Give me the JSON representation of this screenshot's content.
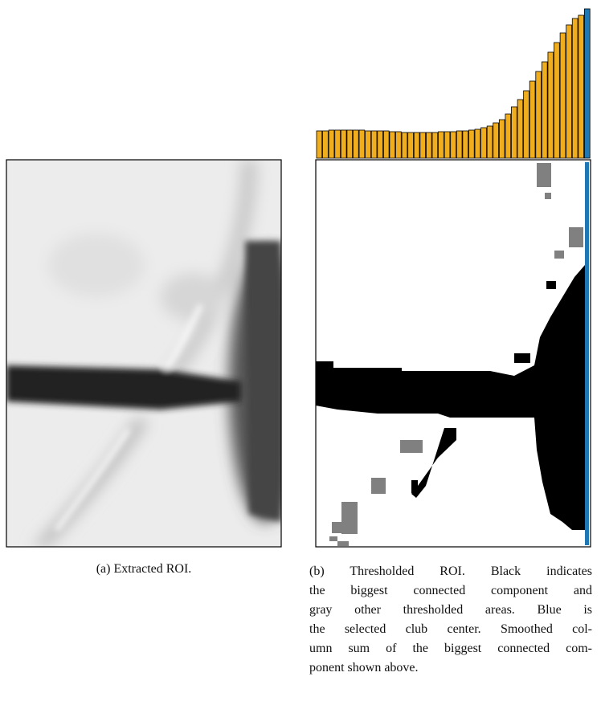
{
  "figure": {
    "subfigure_a": {
      "caption": "(a) Extracted ROI."
    },
    "subfigure_b": {
      "caption_lines": [
        "(b) Thresholded ROI. Black indicates",
        "the biggest connected component and",
        "gray other thresholded areas. Blue is",
        "the selected club center. Smoothed col-",
        "umn sum of the biggest connected com-",
        "ponent shown above."
      ]
    },
    "column_sum": {
      "values": [
        34,
        34,
        35,
        35,
        35,
        35,
        35,
        35,
        34,
        34,
        34,
        34,
        33,
        33,
        32,
        32,
        32,
        32,
        32,
        32,
        33,
        33,
        33,
        34,
        34,
        35,
        36,
        38,
        40,
        44,
        48,
        55,
        64,
        73,
        84,
        96,
        108,
        120,
        132,
        144,
        156,
        166,
        174,
        178
      ],
      "color": "#f0ad1e",
      "selected_value": 186,
      "selected_color": "#1f77b4"
    }
  }
}
